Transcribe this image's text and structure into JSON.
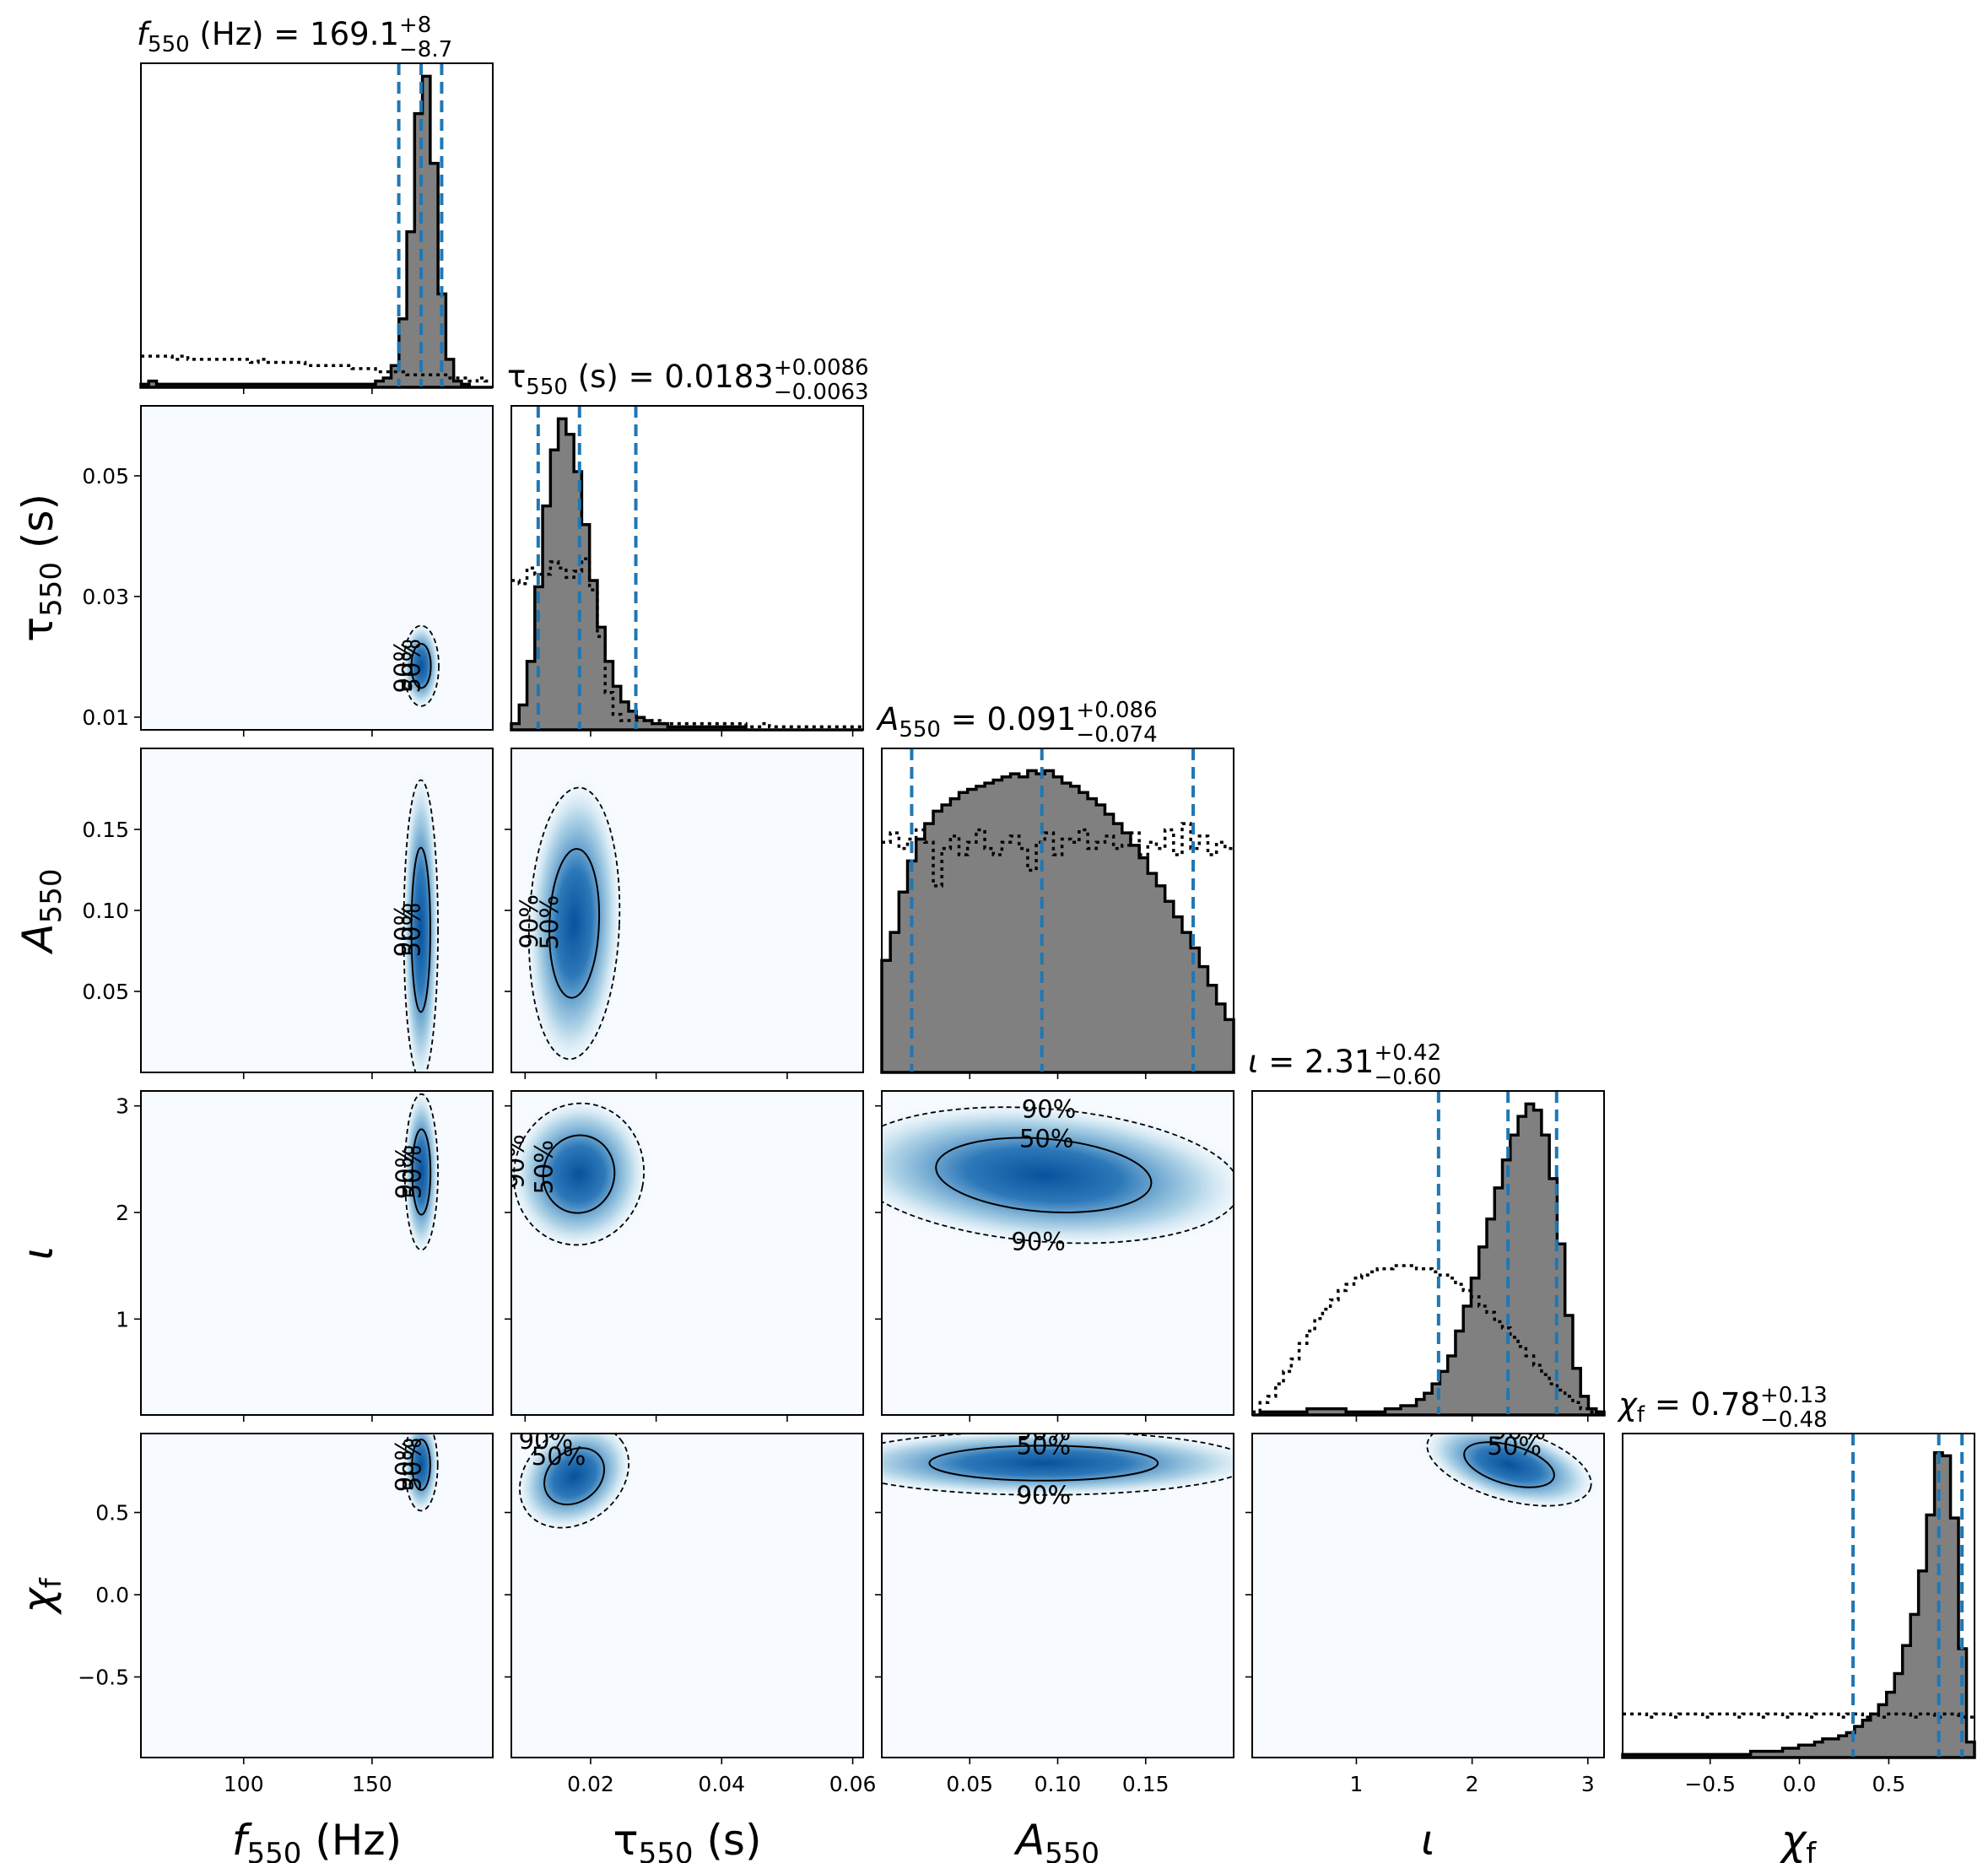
{
  "chart_data": {
    "type": "corner",
    "parameters": [
      {
        "key": "f550",
        "label_sym": "f",
        "label_sub": "550",
        "label_unit": " (Hz)",
        "italic": true,
        "title_value": "169.1",
        "title_plus": "+8",
        "title_minus": "−8.7",
        "range": [
          60,
          197
        ],
        "ticks": [
          100,
          150
        ],
        "tick_labels": [
          "100",
          "150"
        ],
        "median": 169.1,
        "lower": 160.4,
        "upper": 177.1,
        "posterior_hist": [
          0.01,
          0.02,
          0.01,
          0.01,
          0.01,
          0.01,
          0.01,
          0.01,
          0.01,
          0.01,
          0.01,
          0.01,
          0.01,
          0.01,
          0.01,
          0.01,
          0.01,
          0.01,
          0.01,
          0.01,
          0.01,
          0.01,
          0.01,
          0.01,
          0.01,
          0.01,
          0.01,
          0.01,
          0.01,
          0.01,
          0.02,
          0.03,
          0.07,
          0.22,
          0.5,
          0.88,
          1.0,
          0.72,
          0.3,
          0.09,
          0.02,
          0.01,
          0.0,
          0.0,
          0.0
        ],
        "prior_hist": [
          0.1,
          0.1,
          0.1,
          0.1,
          0.09,
          0.1,
          0.09,
          0.09,
          0.09,
          0.09,
          0.09,
          0.09,
          0.09,
          0.09,
          0.08,
          0.09,
          0.08,
          0.08,
          0.08,
          0.08,
          0.08,
          0.07,
          0.07,
          0.07,
          0.07,
          0.07,
          0.07,
          0.06,
          0.06,
          0.06,
          0.05,
          0.05,
          0.05,
          0.05,
          0.04,
          0.04,
          0.04,
          0.04,
          0.04,
          0.03,
          0.03,
          0.03,
          0.02,
          0.03,
          0.02
        ]
      },
      {
        "key": "tau550",
        "label_sym": "τ",
        "label_sub": "550",
        "label_unit": " (s)",
        "italic": false,
        "title_value": "0.0183",
        "title_plus": "+0.0086",
        "title_minus": "−0.0063",
        "range": [
          0.0079,
          0.0616
        ],
        "ticks": [
          0.01,
          0.03,
          0.05
        ],
        "tick_labels": [
          "0.01",
          "0.03",
          "0.05"
        ],
        "bottom_ticks": [
          0.02,
          0.04,
          0.06
        ],
        "bottom_tick_labels": [
          "0.02",
          "0.04",
          "0.06"
        ],
        "median": 0.0183,
        "lower": 0.012,
        "upper": 0.0269,
        "posterior_hist": [
          0.02,
          0.08,
          0.22,
          0.46,
          0.72,
          0.9,
          1.0,
          0.95,
          0.83,
          0.66,
          0.48,
          0.33,
          0.22,
          0.14,
          0.09,
          0.06,
          0.04,
          0.03,
          0.02,
          0.02,
          0.01,
          0.01,
          0.01,
          0.01,
          0.01,
          0.01,
          0.01,
          0.01,
          0.01,
          0.01,
          0.0,
          0.0,
          0.0,
          0.0,
          0.0,
          0.0,
          0.0,
          0.0,
          0.0,
          0.0,
          0.0,
          0.0,
          0.0,
          0.0,
          0.0
        ],
        "prior_hist": [
          0.48,
          0.47,
          0.52,
          0.5,
          0.5,
          0.54,
          0.52,
          0.49,
          0.51,
          0.55,
          0.45,
          0.3,
          0.12,
          0.05,
          0.03,
          0.03,
          0.03,
          0.03,
          0.03,
          0.02,
          0.02,
          0.02,
          0.02,
          0.02,
          0.02,
          0.02,
          0.02,
          0.02,
          0.02,
          0.02,
          0.01,
          0.01,
          0.02,
          0.01,
          0.01,
          0.01,
          0.01,
          0.01,
          0.01,
          0.01,
          0.01,
          0.01,
          0.01,
          0.01,
          0.01
        ]
      },
      {
        "key": "A550",
        "label_sym": "A",
        "label_sub": "550",
        "label_unit": "",
        "italic": true,
        "title_value": "0.091",
        "title_plus": "+0.086",
        "title_minus": "−0.074",
        "range": [
          0.0,
          0.2
        ],
        "ticks": [
          0.05,
          0.1,
          0.15
        ],
        "tick_labels": [
          "0.05",
          "0.10",
          "0.15"
        ],
        "median": 0.091,
        "lower": 0.017,
        "upper": 0.177,
        "posterior_hist": [
          0.36,
          0.45,
          0.58,
          0.68,
          0.75,
          0.8,
          0.84,
          0.86,
          0.88,
          0.9,
          0.91,
          0.92,
          0.93,
          0.94,
          0.95,
          0.96,
          0.95,
          0.97,
          0.96,
          0.97,
          0.95,
          0.93,
          0.92,
          0.9,
          0.88,
          0.86,
          0.83,
          0.8,
          0.77,
          0.73,
          0.69,
          0.64,
          0.6,
          0.55,
          0.5,
          0.45,
          0.4,
          0.34,
          0.28,
          0.22,
          0.17
        ],
        "prior_hist": [
          0.74,
          0.77,
          0.72,
          0.75,
          0.78,
          0.74,
          0.6,
          0.72,
          0.76,
          0.7,
          0.74,
          0.78,
          0.72,
          0.7,
          0.74,
          0.76,
          0.72,
          0.65,
          0.74,
          0.77,
          0.7,
          0.75,
          0.74,
          0.78,
          0.72,
          0.74,
          0.76,
          0.72,
          0.73,
          0.77,
          0.7,
          0.74,
          0.72,
          0.78,
          0.7,
          0.8,
          0.72,
          0.76,
          0.7,
          0.74,
          0.72
        ]
      },
      {
        "key": "iota",
        "label_sym": "ι",
        "label_sub": "",
        "label_unit": "",
        "italic": true,
        "title_value": "2.31",
        "title_plus": "+0.42",
        "title_minus": "−0.60",
        "range": [
          0.1,
          3.14
        ],
        "ticks": [
          1,
          2,
          3
        ],
        "tick_labels": [
          "1",
          "2",
          "3"
        ],
        "median": 2.31,
        "lower": 1.71,
        "upper": 2.73,
        "posterior_hist": [
          0.0,
          0.01,
          0.01,
          0.01,
          0.01,
          0.01,
          0.01,
          0.02,
          0.02,
          0.02,
          0.02,
          0.02,
          0.01,
          0.01,
          0.01,
          0.01,
          0.01,
          0.02,
          0.02,
          0.03,
          0.03,
          0.05,
          0.07,
          0.1,
          0.14,
          0.19,
          0.27,
          0.35,
          0.44,
          0.54,
          0.63,
          0.73,
          0.82,
          0.9,
          0.96,
          1.0,
          0.98,
          0.9,
          0.76,
          0.55,
          0.32,
          0.15,
          0.06,
          0.02,
          0.01
        ],
        "prior_hist": [
          0.01,
          0.04,
          0.06,
          0.1,
          0.14,
          0.18,
          0.23,
          0.27,
          0.31,
          0.34,
          0.37,
          0.4,
          0.42,
          0.44,
          0.45,
          0.46,
          0.47,
          0.47,
          0.48,
          0.48,
          0.48,
          0.47,
          0.47,
          0.46,
          0.45,
          0.44,
          0.42,
          0.4,
          0.38,
          0.35,
          0.33,
          0.3,
          0.28,
          0.25,
          0.22,
          0.19,
          0.16,
          0.13,
          0.1,
          0.08,
          0.06,
          0.04,
          0.02,
          0.01,
          0.01
        ]
      },
      {
        "key": "chif",
        "label_sym": "χ",
        "label_sub": "f",
        "label_unit": "",
        "italic": true,
        "title_value": "0.78",
        "title_plus": "+0.13",
        "title_minus": "−0.48",
        "range": [
          -0.99,
          0.98
        ],
        "ticks": [
          -0.5,
          0.0,
          0.5
        ],
        "tick_labels": [
          "−0.5",
          "0.0",
          "0.5"
        ],
        "median": 0.78,
        "lower": 0.3,
        "upper": 0.91,
        "posterior_hist": [
          0.01,
          0.01,
          0.01,
          0.01,
          0.01,
          0.01,
          0.01,
          0.01,
          0.01,
          0.01,
          0.01,
          0.01,
          0.01,
          0.01,
          0.01,
          0.01,
          0.02,
          0.02,
          0.02,
          0.02,
          0.03,
          0.03,
          0.04,
          0.04,
          0.05,
          0.06,
          0.06,
          0.07,
          0.08,
          0.1,
          0.12,
          0.14,
          0.17,
          0.21,
          0.27,
          0.36,
          0.46,
          0.6,
          0.78,
          0.98,
          0.97,
          0.77,
          0.35,
          0.05
        ],
        "prior_hist": [
          0.14,
          0.14,
          0.14,
          0.13,
          0.14,
          0.14,
          0.13,
          0.14,
          0.14,
          0.14,
          0.13,
          0.14,
          0.14,
          0.14,
          0.13,
          0.14,
          0.14,
          0.13,
          0.14,
          0.14,
          0.13,
          0.14,
          0.14,
          0.13,
          0.14,
          0.14,
          0.14,
          0.13,
          0.14,
          0.14,
          0.13,
          0.14,
          0.13,
          0.14,
          0.14,
          0.14,
          0.13,
          0.14,
          0.14,
          0.13,
          0.14,
          0.14,
          0.13,
          0.13
        ]
      }
    ],
    "joint": [
      {
        "row": 1,
        "col": 0,
        "cx": 169.1,
        "cy": 0.0185,
        "sx": 3.2,
        "sy": 0.0031,
        "rho": 0.0,
        "labels90": [
          "90%"
        ],
        "labels50": [
          "50%"
        ]
      },
      {
        "row": 2,
        "col": 0,
        "cx": 169.0,
        "cy": 0.088,
        "sx": 3.1,
        "sy": 0.043,
        "rho": 0.0,
        "labels90": [
          "90%"
        ],
        "labels50": [
          "50%"
        ]
      },
      {
        "row": 2,
        "col": 1,
        "cx": 0.0175,
        "cy": 0.092,
        "sx": 0.0032,
        "sy": 0.039,
        "rho": -0.05,
        "labels90": [
          "90%"
        ],
        "labels50": [
          "50%"
        ]
      },
      {
        "row": 3,
        "col": 0,
        "cx": 169.2,
        "cy": 2.38,
        "sx": 3.0,
        "sy": 0.34,
        "rho": 0.0,
        "labels90": [
          "90%"
        ],
        "labels50": [
          "50%"
        ]
      },
      {
        "row": 3,
        "col": 1,
        "cx": 0.0182,
        "cy": 2.36,
        "sx": 0.0046,
        "sy": 0.31,
        "rho": -0.25,
        "labels90": [
          "90%"
        ],
        "labels50": [
          "50%"
        ]
      },
      {
        "row": 3,
        "col": 2,
        "cx": 0.092,
        "cy": 2.35,
        "sx": 0.052,
        "sy": 0.29,
        "rho": -0.1,
        "labels90": [
          "90%",
          "90%"
        ],
        "labels50": [
          "50%"
        ]
      },
      {
        "row": 4,
        "col": 0,
        "cx": 169.1,
        "cy": 0.79,
        "sx": 3.0,
        "sy": 0.13,
        "rho": 0.0,
        "labels90": [
          "90%"
        ],
        "labels50": [
          "50%"
        ]
      },
      {
        "row": 4,
        "col": 1,
        "cx": 0.0175,
        "cy": 0.72,
        "sx": 0.0042,
        "sy": 0.13,
        "rho": 0.85,
        "labels90": [
          "90%"
        ],
        "labels50": [
          "50%"
        ]
      },
      {
        "row": 4,
        "col": 2,
        "cx": 0.092,
        "cy": 0.8,
        "sx": 0.055,
        "sy": 0.09,
        "rho": 0.0,
        "labels90": [
          "90%",
          "90%",
          "90%",
          "90%"
        ],
        "labels50": [
          "50%"
        ]
      },
      {
        "row": 4,
        "col": 3,
        "cx": 2.32,
        "cy": 0.79,
        "sx": 0.34,
        "sy": 0.1,
        "rho": -0.35,
        "labels90": [
          "90%"
        ],
        "labels50": [
          "50%"
        ]
      }
    ],
    "contour_levels": [
      "50%",
      "90%"
    ],
    "colors": {
      "posterior_fill": "#808080",
      "quantile_line": "#1f77b4",
      "density_low": "#f7fbff",
      "density_high": "#08519c"
    }
  }
}
